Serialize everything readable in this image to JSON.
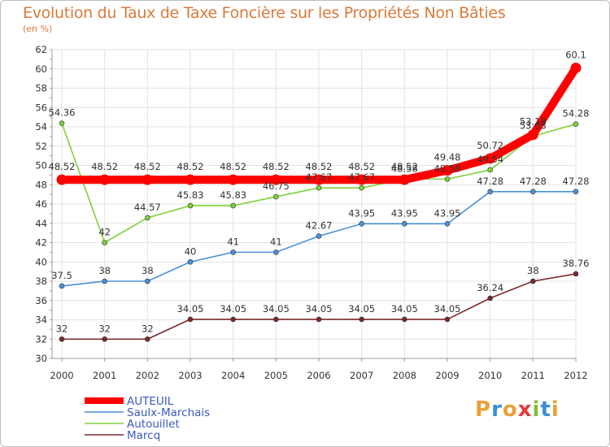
{
  "title": "Evolution du Taux de Taxe Foncière sur les Propriétés Non Bâties",
  "unit_label": "(en %)",
  "logo_text": "Proxiti",
  "chart_data": {
    "type": "line",
    "title": "Evolution du Taux de Taxe Foncière sur les Propriétés Non Bâties",
    "ylabel": "(en %)",
    "xlabel": "",
    "x": [
      "2000",
      "2001",
      "2002",
      "2003",
      "2004",
      "2005",
      "2006",
      "2007",
      "2008",
      "2009",
      "2010",
      "2011",
      "2012"
    ],
    "ylim": [
      30,
      62
    ],
    "yticks": [
      30,
      32,
      34,
      36,
      38,
      40,
      42,
      44,
      46,
      48,
      50,
      52,
      54,
      56,
      58,
      60,
      62
    ],
    "grid": true,
    "legend": "bottom-left",
    "series": [
      {
        "name": "AUTEUIL",
        "color": "#ff0000",
        "values": [
          48.52,
          48.52,
          48.52,
          48.52,
          48.52,
          48.52,
          48.52,
          48.52,
          48.52,
          49.48,
          50.72,
          53.18,
          60.1
        ],
        "labels": [
          "48.52",
          "48.52",
          "48.52",
          "48.52",
          "48.52",
          "48.52",
          "48.52",
          "48.52",
          "48.52",
          "49.48",
          "50.72",
          "53.18",
          "60.1"
        ]
      },
      {
        "name": "Saulx-Marchais",
        "color": "#4a90d9",
        "values": [
          37.5,
          38,
          38,
          40,
          41,
          41,
          42.67,
          43.95,
          43.95,
          43.95,
          47.28,
          47.28,
          47.28
        ],
        "labels": [
          "37.5",
          "38",
          "38",
          "40",
          "41",
          "41",
          "42.67",
          "43.95",
          "43.95",
          "43.95",
          "47.28",
          "47.28",
          "47.28"
        ]
      },
      {
        "name": "Autouillet",
        "color": "#7fd13a",
        "values": [
          54.36,
          42,
          44.57,
          45.83,
          45.83,
          46.75,
          47.67,
          47.67,
          48.58,
          48.58,
          49.54,
          53.03,
          54.28
        ],
        "labels": [
          "54.36",
          "42",
          "44.57",
          "45.83",
          "45.83",
          "46.75",
          "47.67",
          "47.67",
          "48.58",
          "48.58",
          "49.54",
          "53.03",
          "54.28"
        ]
      },
      {
        "name": "Marcq",
        "color": "#7a2a2a",
        "values": [
          32,
          32,
          32,
          34.05,
          34.05,
          34.05,
          34.05,
          34.05,
          34.05,
          34.05,
          36.24,
          38,
          38.76
        ],
        "labels": [
          "32",
          "32",
          "32",
          "34.05",
          "34.05",
          "34.05",
          "34.05",
          "34.05",
          "34.05",
          "34.05",
          "36.24",
          "38",
          "38.76"
        ]
      }
    ]
  }
}
